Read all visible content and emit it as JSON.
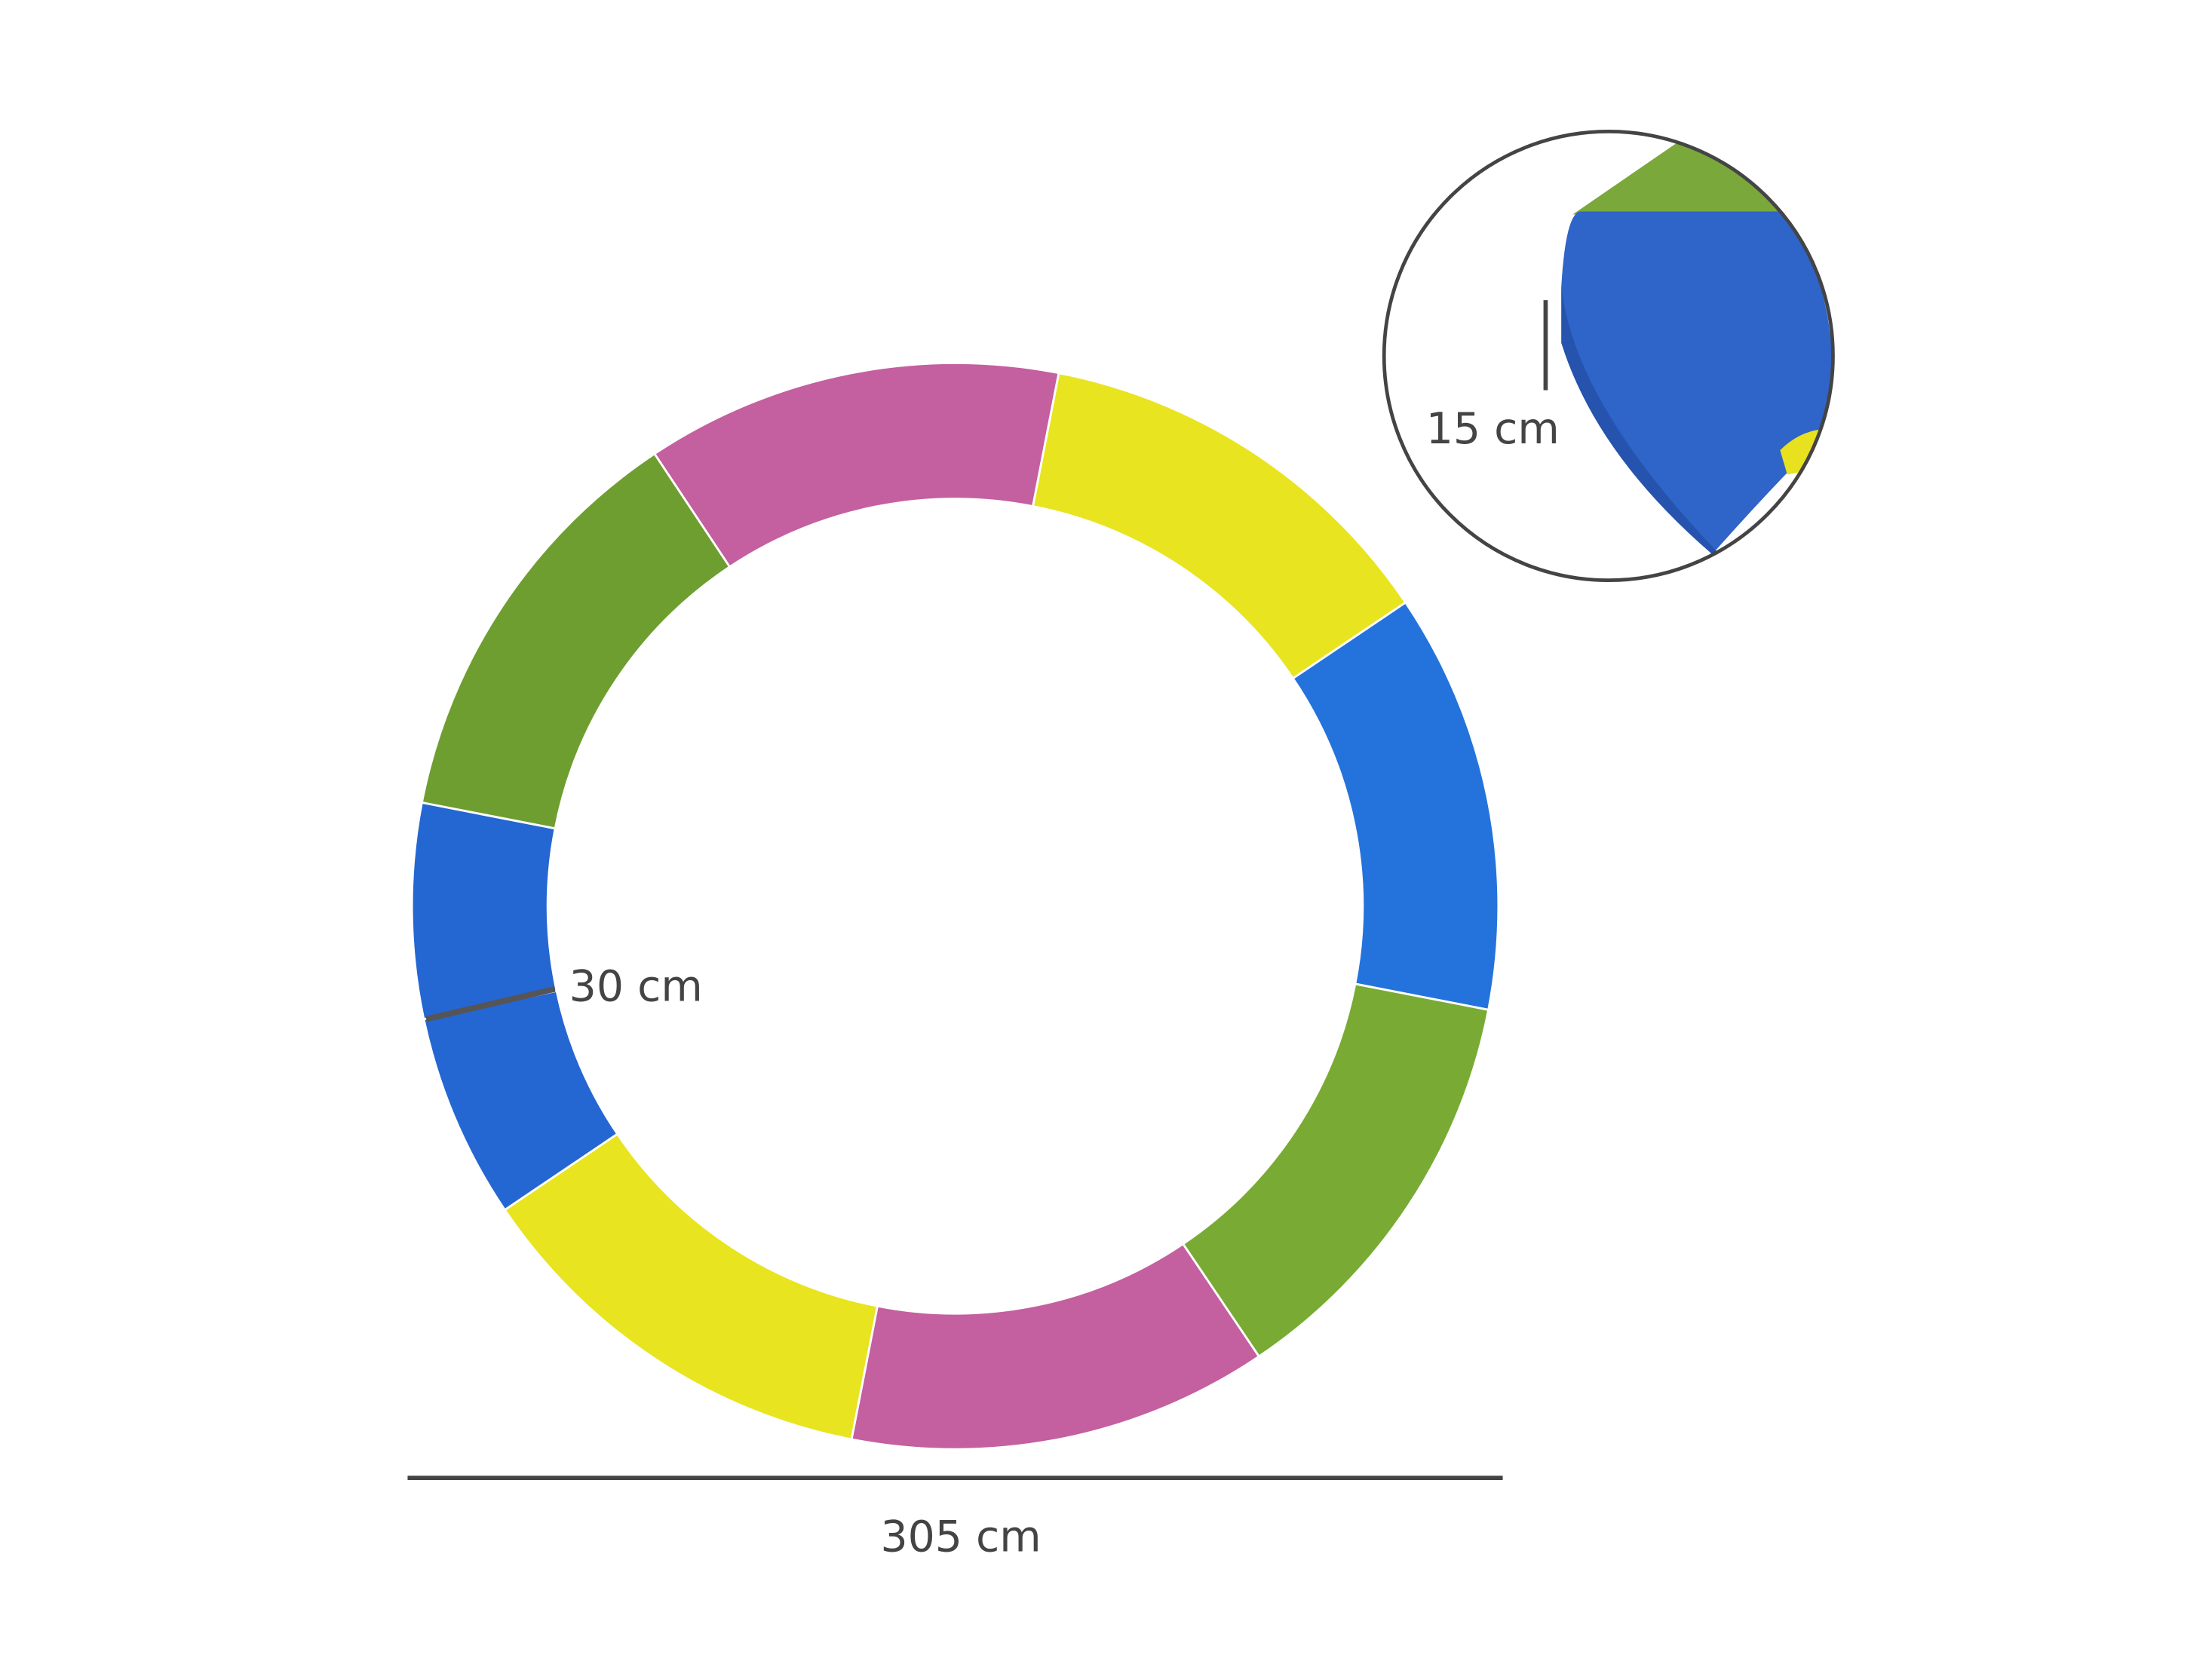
{
  "dimensions": {
    "diameter": "305 cm",
    "width": "30 cm",
    "thickness": "15 cm"
  }
}
